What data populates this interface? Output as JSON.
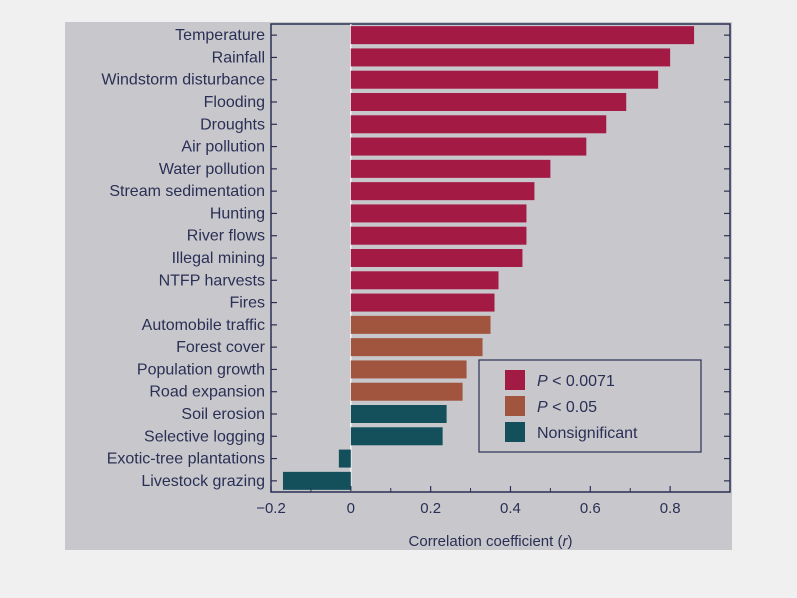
{
  "chart_data": {
    "type": "bar",
    "orientation": "horizontal",
    "xlabel": "Correlation coefficient (r)",
    "xlim": [
      -0.2,
      0.95
    ],
    "xticks": [
      -0.2,
      0,
      0.2,
      0.4,
      0.6,
      0.8
    ],
    "xtick_labels": [
      "−0.2",
      "0",
      "0.2",
      "0.4",
      "0.6",
      "0.8"
    ],
    "categories": [
      "Temperature",
      "Rainfall",
      "Windstorm disturbance",
      "Flooding",
      "Droughts",
      "Air pollution",
      "Water pollution",
      "Stream sedimentation",
      "Hunting",
      "River flows",
      "Illegal mining",
      "NTFP harvests",
      "Fires",
      "Automobile traffic",
      "Forest cover",
      "Population growth",
      "Road expansion",
      "Soil erosion",
      "Selective logging",
      "Exotic-tree plantations",
      "Livestock grazing"
    ],
    "values": [
      0.86,
      0.8,
      0.77,
      0.69,
      0.64,
      0.59,
      0.5,
      0.46,
      0.44,
      0.44,
      0.43,
      0.37,
      0.36,
      0.35,
      0.33,
      0.29,
      0.28,
      0.24,
      0.23,
      -0.03,
      -0.17
    ],
    "significance": [
      "p0071",
      "p0071",
      "p0071",
      "p0071",
      "p0071",
      "p0071",
      "p0071",
      "p0071",
      "p0071",
      "p0071",
      "p0071",
      "p0071",
      "p0071",
      "p05",
      "p05",
      "p05",
      "p05",
      "ns",
      "ns",
      "ns",
      "ns"
    ],
    "legend": {
      "position": "bottom-right",
      "entries": [
        {
          "key": "p0071",
          "italic": "P",
          "rest": " < 0.0071",
          "color": "#a31a45"
        },
        {
          "key": "p05",
          "italic": "P",
          "rest": " < 0.05",
          "color": "#a1553e"
        },
        {
          "key": "ns",
          "italic": "",
          "rest": "Nonsignificant",
          "color": "#14505c"
        }
      ]
    },
    "colors": {
      "p0071": "#a31a45",
      "p05": "#a1553e",
      "ns": "#14505c",
      "axis": "#2a2f55",
      "background": "#c8c8cc"
    },
    "grid": false
  }
}
